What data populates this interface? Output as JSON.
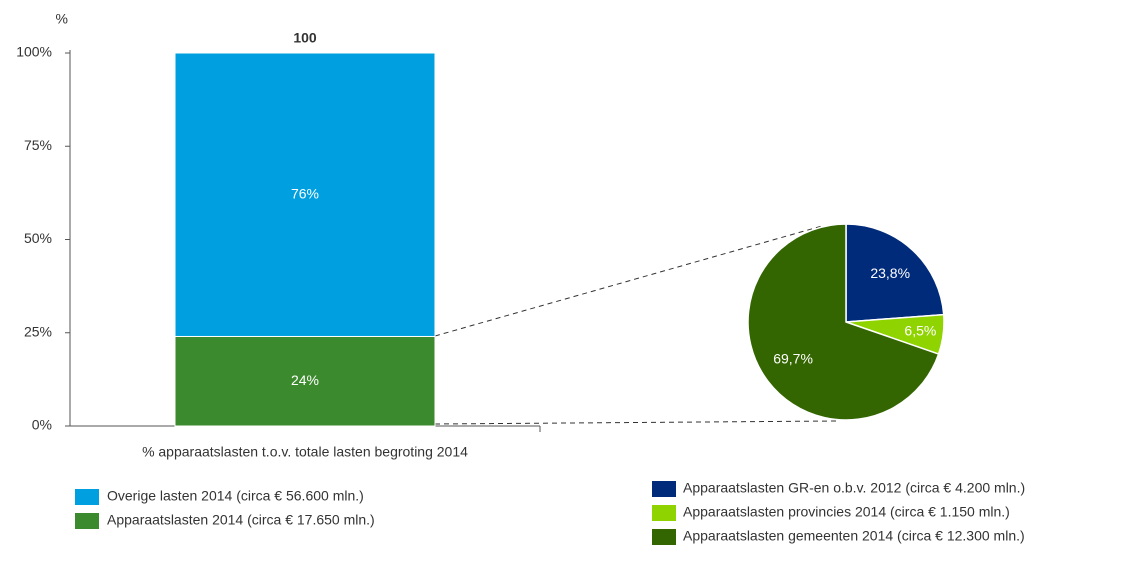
{
  "chart_data": [
    {
      "type": "bar",
      "y_axis_label": "%",
      "categories": [
        "% apparaatslasten t.o.v. totale lasten begroting 2014"
      ],
      "totals": [
        100
      ],
      "series": [
        {
          "name": "Apparaatslasten 2014 (circa € 17.650 mln.)",
          "color": "#3c8a2e",
          "values": [
            24
          ],
          "value_labels": [
            "24%"
          ]
        },
        {
          "name": "Overige lasten 2014 (circa € 56.600 mln.)",
          "color": "#00a0e0",
          "values": [
            76
          ],
          "value_labels": [
            "76%"
          ]
        }
      ],
      "ylim": [
        0,
        100
      ],
      "yticks": [
        {
          "value": 0,
          "label": "0%"
        },
        {
          "value": 25,
          "label": "25%"
        },
        {
          "value": 50,
          "label": "50%"
        },
        {
          "value": 75,
          "label": "75%"
        },
        {
          "value": 100,
          "label": "100%"
        }
      ]
    },
    {
      "type": "pie",
      "categories": [
        "Apparaatslasten GR-en o.b.v. 2012 (circa € 4.200 mln.)",
        "Apparaatslasten provincies 2014 (circa € 1.150 mln.)",
        "Apparaatslasten gemeenten 2014 (circa € 12.300 mln.)"
      ],
      "values": [
        23.8,
        6.5,
        69.7
      ],
      "value_labels": [
        "23,8%",
        "6,5%",
        "69,7%"
      ],
      "colors": [
        "#002a7a",
        "#8fd400",
        "#336600"
      ]
    }
  ]
}
